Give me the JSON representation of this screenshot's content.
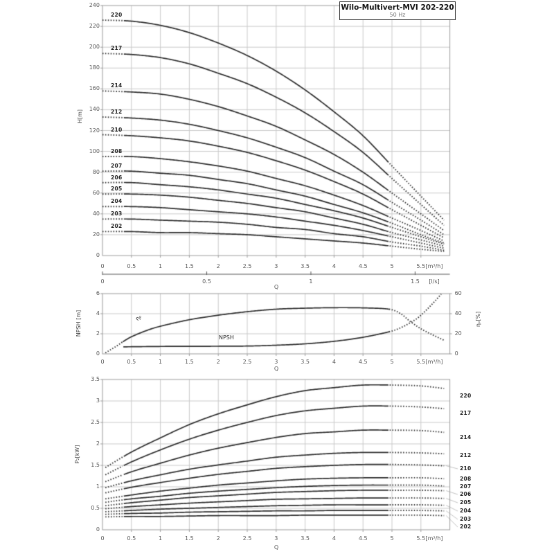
{
  "header": {
    "title": "Wilo-Multivert-MVI 202-220",
    "frequency": "50 Hz"
  },
  "colors": {
    "curve": "#2b2b2b",
    "grid": "#c9c9c9",
    "border": "#9a9a9a",
    "leader": "#999999",
    "text": "#555555",
    "title": "#111111"
  },
  "chart_data": [
    {
      "id": "head-flow",
      "type": "line",
      "x_axis": {
        "label": "Q",
        "unit": "[m³/h]",
        "min": 0,
        "max": 6,
        "ticks": [
          "0",
          "0.5",
          "1",
          "1.5",
          "2",
          "2.5",
          "3",
          "3.5",
          "4",
          "4.5",
          "5",
          "5.5"
        ]
      },
      "x_axis_secondary": {
        "label": "Q",
        "unit": "[l/s]",
        "ticks": [
          "0",
          "0.5",
          "1",
          "1.5"
        ],
        "tick_positions_m3h": [
          0,
          1.8,
          3.6,
          5.4
        ]
      },
      "y_axis": {
        "label": "H[m]",
        "min": 0,
        "max": 240,
        "ticks": [
          "240",
          "220",
          "200",
          "180",
          "160",
          "140",
          "120",
          "100",
          "80",
          "60",
          "40",
          "20",
          "0"
        ]
      },
      "solid_q_range": [
        0.35,
        4.95
      ],
      "q": [
        0,
        0.5,
        1,
        1.5,
        2,
        2.5,
        3,
        3.5,
        4,
        4.5,
        5,
        5.5,
        5.9
      ],
      "series": [
        {
          "name": "220",
          "values": [
            226,
            225,
            221,
            214,
            204,
            192,
            177,
            159,
            138,
            115,
            86,
            57,
            34
          ]
        },
        {
          "name": "217",
          "values": [
            194,
            193,
            190,
            184,
            175,
            165,
            152,
            137,
            119,
            99,
            74,
            49,
            29
          ]
        },
        {
          "name": "214",
          "values": [
            158,
            157,
            155,
            150,
            143,
            134,
            124,
            111,
            97,
            80,
            60,
            40,
            24
          ]
        },
        {
          "name": "212",
          "values": [
            133,
            132,
            130,
            126,
            120,
            113,
            104,
            94,
            81,
            68,
            51,
            34,
            20
          ]
        },
        {
          "name": "210",
          "values": [
            116,
            115,
            113,
            110,
            105,
            99,
            91,
            82,
            71,
            59,
            44,
            29,
            17
          ]
        },
        {
          "name": "208",
          "values": [
            95,
            95,
            93,
            90,
            86,
            81,
            74,
            67,
            58,
            48,
            36,
            24,
            14
          ]
        },
        {
          "name": "207",
          "values": [
            81,
            81,
            79,
            77,
            73,
            69,
            63,
            57,
            49,
            41,
            31,
            20,
            12
          ]
        },
        {
          "name": "206",
          "values": [
            70,
            70,
            68,
            66,
            63,
            59,
            55,
            49,
            43,
            36,
            27,
            18,
            11
          ]
        },
        {
          "name": "205",
          "values": [
            59,
            59,
            58,
            56,
            53,
            50,
            46,
            42,
            36,
            30,
            22,
            15,
            9
          ]
        },
        {
          "name": "204",
          "values": [
            47,
            47,
            46,
            44,
            42,
            40,
            37,
            33,
            29,
            24,
            18,
            12,
            7
          ]
        },
        {
          "name": "203",
          "values": [
            35,
            35,
            34,
            33,
            32,
            30,
            27,
            25,
            21,
            18,
            13,
            9,
            5
          ]
        },
        {
          "name": "202",
          "values": [
            23,
            23,
            22,
            22,
            21,
            20,
            18,
            16,
            14,
            12,
            9,
            6,
            4
          ]
        }
      ]
    },
    {
      "id": "npsh-efficiency",
      "type": "line",
      "x_axis": {
        "label": "Q",
        "unit": "[m³/h]",
        "min": 0,
        "max": 6,
        "ticks": [
          "0",
          "0.5",
          "1",
          "1.5",
          "2",
          "2.5",
          "3",
          "3.5",
          "4",
          "4.5",
          "5",
          "5.5"
        ]
      },
      "y_axis_left": {
        "label": "NPSH [m]",
        "min": 0,
        "max": 6,
        "ticks": [
          "6",
          "4",
          "2",
          "0"
        ]
      },
      "y_axis_right": {
        "label": "ηₚ[%]",
        "min": 0,
        "max": 60,
        "ticks": [
          "60",
          "40",
          "20",
          "0"
        ]
      },
      "series": [
        {
          "name": "ηₚ",
          "axis": "right",
          "solid_q_range": [
            0.35,
            4.95
          ],
          "q": [
            0.05,
            0.15,
            0.25,
            0.35,
            0.5,
            0.75,
            1,
            1.5,
            2,
            2.5,
            3,
            3.5,
            4,
            4.5,
            4.95,
            5.15,
            5.3,
            5.5,
            5.7,
            5.9
          ],
          "values": [
            1,
            4.5,
            8,
            12,
            17,
            23,
            27.5,
            34,
            38.5,
            42,
            44.5,
            45.5,
            46,
            45.8,
            44.5,
            40,
            33,
            25,
            19,
            13.5
          ]
        },
        {
          "name": "NPSH",
          "axis": "left",
          "solid_q_range": [
            0.36,
            4.95
          ],
          "q": [
            0.36,
            1,
            1.5,
            2,
            2.5,
            3,
            3.5,
            4,
            4.5,
            4.95,
            5.15,
            5.3,
            5.45,
            5.6,
            5.75,
            5.85
          ],
          "values": [
            0.7,
            0.74,
            0.75,
            0.76,
            0.78,
            0.86,
            1.0,
            1.25,
            1.65,
            2.2,
            2.6,
            3.05,
            3.6,
            4.4,
            5.3,
            5.95
          ]
        }
      ]
    },
    {
      "id": "power-flow",
      "type": "line",
      "x_axis": {
        "label": "Q",
        "unit": "[m³/h]",
        "min": 0,
        "max": 6,
        "ticks": [
          "0",
          "0.5",
          "1",
          "1.5",
          "2",
          "2.5",
          "3",
          "3.5",
          "4",
          "4.5",
          "5",
          "5.5"
        ]
      },
      "y_axis": {
        "label": "P₂[kW]",
        "min": 0,
        "max": 3.5,
        "ticks": [
          "3.5",
          "3",
          "2.5",
          "2",
          "1.5",
          "1",
          "0.5",
          "0"
        ]
      },
      "solid_q_range": [
        0.35,
        4.95
      ],
      "q": [
        0.05,
        0.5,
        1,
        1.5,
        2,
        2.5,
        3,
        3.5,
        4,
        4.5,
        5,
        5.5,
        5.9
      ],
      "series": [
        {
          "name": "220",
          "values": [
            1.45,
            1.81,
            2.14,
            2.45,
            2.7,
            2.91,
            3.1,
            3.24,
            3.31,
            3.37,
            3.37,
            3.35,
            3.29
          ]
        },
        {
          "name": "217",
          "values": [
            1.28,
            1.58,
            1.86,
            2.11,
            2.32,
            2.5,
            2.66,
            2.77,
            2.83,
            2.88,
            2.88,
            2.86,
            2.82
          ]
        },
        {
          "name": "214",
          "values": [
            1.12,
            1.35,
            1.55,
            1.74,
            1.9,
            2.03,
            2.15,
            2.24,
            2.28,
            2.32,
            2.32,
            2.31,
            2.27
          ]
        },
        {
          "name": "212",
          "values": [
            0.98,
            1.14,
            1.28,
            1.41,
            1.51,
            1.6,
            1.69,
            1.74,
            1.78,
            1.8,
            1.8,
            1.79,
            1.77
          ]
        },
        {
          "name": "210",
          "values": [
            0.86,
            0.99,
            1.1,
            1.2,
            1.29,
            1.36,
            1.43,
            1.47,
            1.5,
            1.52,
            1.52,
            1.51,
            1.49
          ]
        },
        {
          "name": "208",
          "values": [
            0.72,
            0.81,
            0.9,
            0.97,
            1.04,
            1.09,
            1.14,
            1.18,
            1.2,
            1.21,
            1.21,
            1.21,
            1.19
          ]
        },
        {
          "name": "207",
          "values": [
            0.64,
            0.72,
            0.78,
            0.85,
            0.9,
            0.94,
            0.98,
            1.01,
            1.03,
            1.04,
            1.04,
            1.04,
            1.02
          ]
        },
        {
          "name": "206",
          "values": [
            0.56,
            0.63,
            0.69,
            0.75,
            0.79,
            0.83,
            0.87,
            0.89,
            0.91,
            0.92,
            0.92,
            0.92,
            0.91
          ]
        },
        {
          "name": "205",
          "values": [
            0.49,
            0.54,
            0.58,
            0.62,
            0.65,
            0.68,
            0.71,
            0.72,
            0.73,
            0.74,
            0.74,
            0.74,
            0.73
          ]
        },
        {
          "name": "204",
          "values": [
            0.42,
            0.45,
            0.48,
            0.5,
            0.52,
            0.54,
            0.56,
            0.57,
            0.58,
            0.58,
            0.58,
            0.58,
            0.57
          ]
        },
        {
          "name": "203",
          "values": [
            0.36,
            0.38,
            0.39,
            0.41,
            0.42,
            0.43,
            0.44,
            0.44,
            0.45,
            0.45,
            0.45,
            0.45,
            0.44
          ]
        },
        {
          "name": "202",
          "values": [
            0.3,
            0.31,
            0.31,
            0.32,
            0.33,
            0.33,
            0.33,
            0.34,
            0.34,
            0.34,
            0.34,
            0.34,
            0.33
          ]
        }
      ]
    }
  ]
}
